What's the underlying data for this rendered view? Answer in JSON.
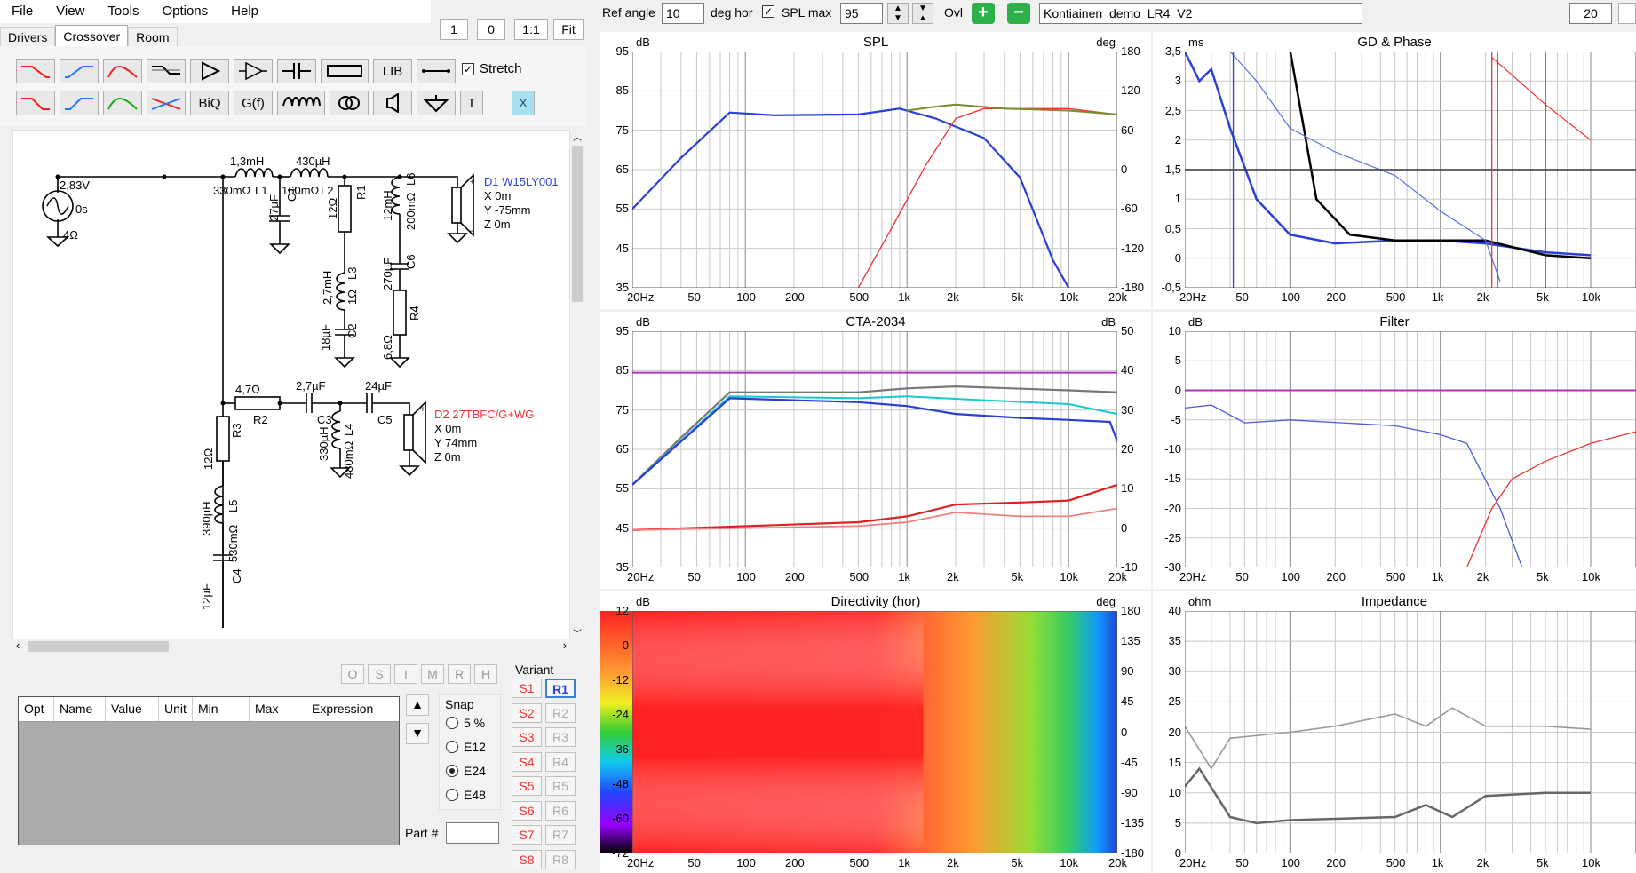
{
  "menu": [
    "File",
    "View",
    "Tools",
    "Options",
    "Help"
  ],
  "zoom_buttons": [
    "1",
    "0",
    "1:1",
    "Fit"
  ],
  "tabs": [
    "Drivers",
    "Crossover",
    "Room"
  ],
  "crossover_buttons": {
    "lib": "LIB",
    "biq": "BiQ",
    "gf": "G(f)",
    "t": "T",
    "x": "X",
    "stretch": "Stretch"
  },
  "top": {
    "ref_angle_label": "Ref angle",
    "ref_angle": "10",
    "deg_hor": "deg hor",
    "spl_max_label": "SPL max",
    "spl_max": "95",
    "ovl": "Ovl",
    "project": "Kontiainen_demo_LR4_V2",
    "right_value": "20"
  },
  "schematic": {
    "source": {
      "voltage": "2,83V",
      "delay": "0s",
      "impedance": "4Ω"
    },
    "L1": {
      "value": "1,3mH",
      "esr": "330mΩ",
      "name": "L1"
    },
    "L2": {
      "value": "430µH",
      "esr": "160mΩ",
      "name": "L2"
    },
    "C1": {
      "value": "27µF",
      "name": "C1"
    },
    "R1": {
      "value": "12Ω",
      "name": "R1"
    },
    "L6": {
      "value": "12mH",
      "esr": "200mΩ",
      "name": "L6"
    },
    "L3": {
      "value": "2,7mH",
      "esr": "1Ω",
      "name": "L3"
    },
    "C6": {
      "value": "270µF",
      "name": "C6"
    },
    "C2": {
      "value": "18µF",
      "name": "C2"
    },
    "R4": {
      "value": "6,8Ω",
      "name": "R4"
    },
    "D1": {
      "name": "D1 W15LY001",
      "x": "X 0m",
      "y": "Y -75mm",
      "z": "Z 0m"
    },
    "R2": {
      "value": "4,7Ω",
      "name": "R2"
    },
    "C3": {
      "value": "2,7µF",
      "name": "C3"
    },
    "C5": {
      "value": "24µF",
      "name": "C5"
    },
    "R3": {
      "value": "12Ω",
      "name": "R3"
    },
    "L4": {
      "value": "330µH",
      "esr": "480mΩ",
      "name": "L4"
    },
    "D2": {
      "name": "D2 27TBFC/G+WG",
      "x": "X 0m",
      "y": "Y 74mm",
      "z": "Z 0m"
    },
    "L5": {
      "value": "390µH",
      "esr": "530mΩ",
      "name": "L5"
    },
    "C4": {
      "value": "12µF",
      "name": "C4"
    }
  },
  "opt_buttons": [
    "O",
    "S",
    "I",
    "M",
    "R",
    "H"
  ],
  "param_table": {
    "headers": [
      "Opt",
      "Name",
      "Value",
      "Unit",
      "Min",
      "Max",
      "Expression"
    ]
  },
  "snap": {
    "label": "Snap",
    "options": [
      "5 %",
      "E12",
      "E24",
      "E48"
    ],
    "selected": "E24"
  },
  "part_label": "Part #",
  "variant": {
    "label": "Variant",
    "s": [
      "S1",
      "S2",
      "S3",
      "S4",
      "S5",
      "S6",
      "S7",
      "S8"
    ],
    "r": [
      "R1",
      "R2",
      "R3",
      "R4",
      "R5",
      "R6",
      "R7",
      "R8"
    ]
  },
  "graphs": {
    "spl": {
      "title": "SPL",
      "left_unit": "dB",
      "right_unit": "deg",
      "y_left": [
        "95",
        "85",
        "75",
        "65",
        "55",
        "45",
        "35"
      ],
      "y_right": [
        "180",
        "120",
        "60",
        "0",
        "-60",
        "-120",
        "-180"
      ],
      "x": [
        "20Hz",
        "50",
        "100",
        "200",
        "500",
        "1k",
        "2k",
        "5k",
        "10k",
        "20k"
      ]
    },
    "gd": {
      "title": "GD & Phase",
      "left_unit": "ms",
      "y_left": [
        "3,5",
        "3",
        "2,5",
        "2",
        "1,5",
        "1",
        "0,5",
        "0",
        "-0,5"
      ],
      "x": [
        "20Hz",
        "50",
        "100",
        "200",
        "500",
        "1k",
        "2k",
        "5k",
        "10k"
      ]
    },
    "cta": {
      "title": "CTA-2034",
      "left_unit": "dB",
      "right_unit": "dB",
      "y_left": [
        "95",
        "85",
        "75",
        "65",
        "55",
        "45",
        "35"
      ],
      "y_right": [
        "50",
        "40",
        "30",
        "20",
        "10",
        "0",
        "-10"
      ],
      "x": [
        "20Hz",
        "50",
        "100",
        "200",
        "500",
        "1k",
        "2k",
        "5k",
        "10k",
        "20k"
      ]
    },
    "filter": {
      "title": "Filter",
      "left_unit": "dB",
      "y_left": [
        "10",
        "5",
        "0",
        "-5",
        "-10",
        "-15",
        "-20",
        "-25",
        "-30"
      ],
      "x": [
        "20Hz",
        "50",
        "100",
        "200",
        "500",
        "1k",
        "2k",
        "5k",
        "10k"
      ]
    },
    "dir": {
      "title": "Directivity (hor)",
      "left_unit": "dB",
      "right_unit": "deg",
      "y_left": [
        "12",
        "0",
        "-12",
        "-24",
        "-36",
        "-48",
        "-60",
        "-72"
      ],
      "y_right": [
        "180",
        "135",
        "90",
        "45",
        "0",
        "-45",
        "-90",
        "-135",
        "-180"
      ],
      "x": [
        "20Hz",
        "50",
        "100",
        "200",
        "500",
        "1k",
        "2k",
        "5k",
        "10k",
        "20k"
      ]
    },
    "imp": {
      "title": "Impedance",
      "left_unit": "ohm",
      "y_left": [
        "40",
        "35",
        "30",
        "25",
        "20",
        "15",
        "10",
        "5",
        "0"
      ],
      "x": [
        "20Hz",
        "50",
        "100",
        "200",
        "500",
        "1k",
        "2k",
        "5k",
        "10k"
      ]
    }
  },
  "colors": {
    "blue": "#2a3fd6",
    "red": "#e33",
    "purple": "#b030c0",
    "accent_selected": "#a8e0f0"
  }
}
